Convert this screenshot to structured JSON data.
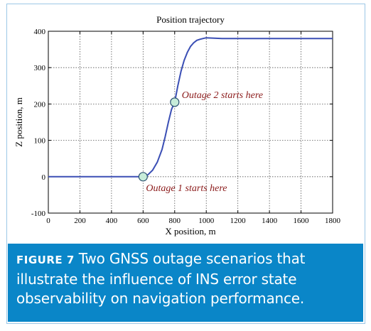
{
  "figure": {
    "label": "FIGURE 7",
    "caption": "Two GNSS outage scenarios that illustrate the influence of INS error state observability on navigation performance.",
    "caption_bg": "#0a86c8",
    "frame_color": "#9cc7e6"
  },
  "chart_data": {
    "type": "line",
    "title": "Position trajectory",
    "xlabel": "X position, m",
    "ylabel": "Z position, m",
    "xlim": [
      0,
      1800
    ],
    "ylim": [
      -100,
      400
    ],
    "xticks": [
      0,
      200,
      400,
      600,
      800,
      1000,
      1200,
      1400,
      1600,
      1800
    ],
    "yticks": [
      -100,
      0,
      100,
      200,
      300,
      400
    ],
    "grid": true,
    "line_color": "#3b4fb5",
    "series": [
      {
        "x": [
          0,
          200,
          400,
          580,
          600,
          630,
          660,
          690,
          720,
          740,
          760,
          780,
          800,
          820,
          840,
          860,
          880,
          900,
          920,
          940,
          960,
          980,
          1000,
          1050,
          1100,
          1200,
          1400,
          1600,
          1800
        ],
        "y": [
          0,
          0,
          0,
          0,
          0,
          5,
          18,
          40,
          75,
          110,
          150,
          185,
          205,
          250,
          290,
          320,
          342,
          358,
          368,
          375,
          378,
          380,
          382,
          381,
          380,
          380,
          380,
          380,
          380
        ]
      }
    ],
    "markers": [
      {
        "x": 600,
        "y": 0,
        "label": "Outage 1 starts here"
      },
      {
        "x": 800,
        "y": 205,
        "label": "Outage 2 starts here"
      }
    ],
    "marker_fill": "#c7ecd9",
    "annotation_color": "#8b1a1a"
  }
}
